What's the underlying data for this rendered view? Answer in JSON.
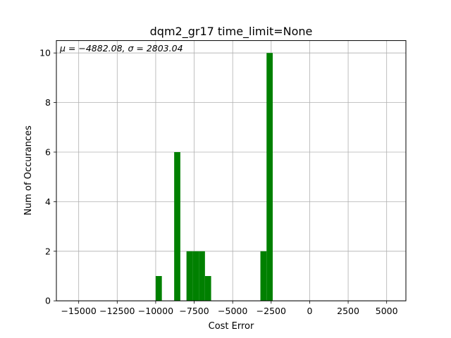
{
  "chart_data": {
    "type": "histogram",
    "title": "dqm2_gr17 time_limit=None",
    "xlabel": "Cost Error",
    "ylabel": "Num of Occurances",
    "annotation": "μ = −4882.08,  σ = 2803.04",
    "xlim": [
      -16450,
      6250
    ],
    "ylim": [
      0,
      10.5
    ],
    "x_ticks": [
      -15000,
      -12500,
      -10000,
      -7500,
      -5000,
      -2500,
      0,
      2500,
      5000
    ],
    "x_tick_labels": [
      "−15000",
      "−12500",
      "−10000",
      "−7500",
      "−5000",
      "−2500",
      "0",
      "2500",
      "5000"
    ],
    "y_ticks": [
      0,
      2,
      4,
      6,
      8,
      10
    ],
    "y_tick_labels": [
      "0",
      "2",
      "4",
      "6",
      "8",
      "10"
    ],
    "grid": true,
    "bar_color": "#008000",
    "bins": [
      {
        "x0": -10000,
        "x1": -9600,
        "count": 1
      },
      {
        "x0": -8800,
        "x1": -8400,
        "count": 6
      },
      {
        "x0": -8000,
        "x1": -7600,
        "count": 2
      },
      {
        "x0": -7600,
        "x1": -7200,
        "count": 2
      },
      {
        "x0": -7200,
        "x1": -6800,
        "count": 2
      },
      {
        "x0": -6800,
        "x1": -6400,
        "count": 1
      },
      {
        "x0": -3200,
        "x1": -2800,
        "count": 2
      },
      {
        "x0": -2800,
        "x1": -2400,
        "count": 10
      }
    ]
  }
}
